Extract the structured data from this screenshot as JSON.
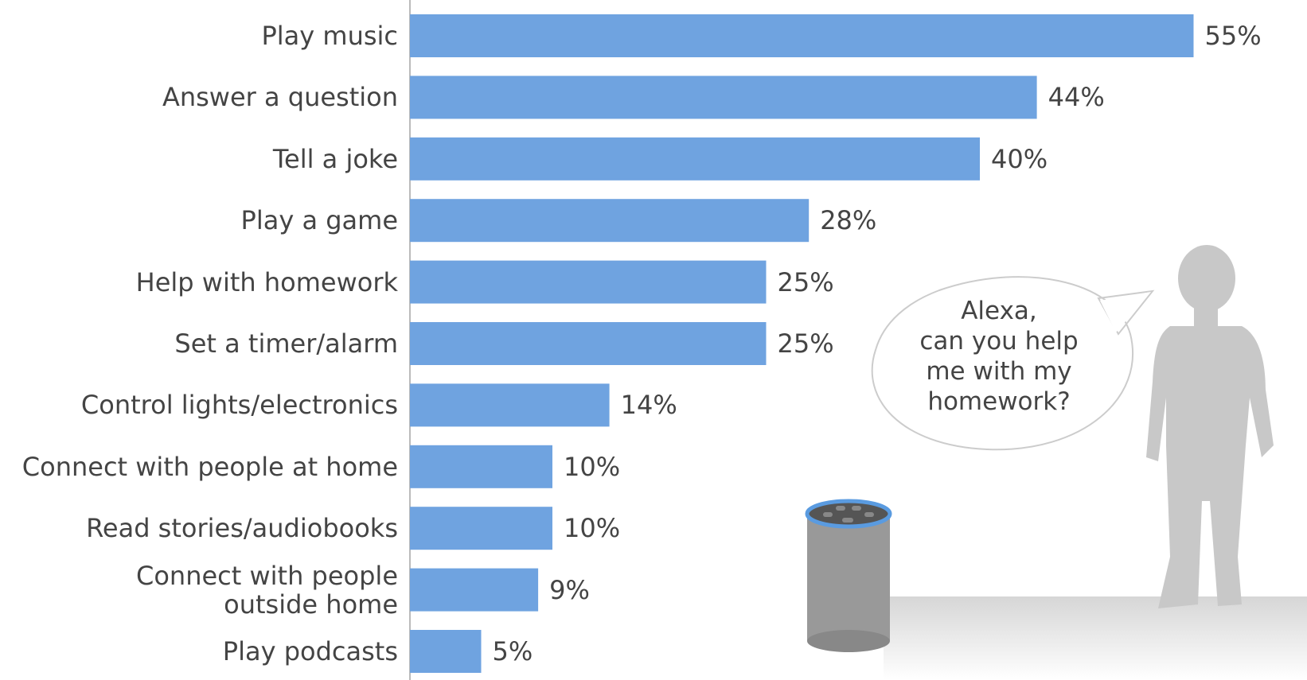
{
  "chart_data": {
    "type": "bar",
    "orientation": "horizontal",
    "color": "#6fa3e0",
    "categories": [
      "Play music",
      "Answer a question",
      "Tell a joke",
      "Play a game",
      "Help with homework",
      "Set a timer/alarm",
      "Control lights/electronics",
      "Connect with people at home",
      "Read stories/audiobooks",
      "Connect with people\noutside home",
      "Play podcasts"
    ],
    "values": [
      55,
      44,
      40,
      28,
      25,
      25,
      14,
      10,
      10,
      9,
      5
    ],
    "value_labels": [
      "55%",
      "44%",
      "40%",
      "28%",
      "25%",
      "25%",
      "14%",
      "10%",
      "10%",
      "9%",
      "5%"
    ],
    "annotation": "Alexa,\ncan you help\nme with my\nhomework?"
  }
}
